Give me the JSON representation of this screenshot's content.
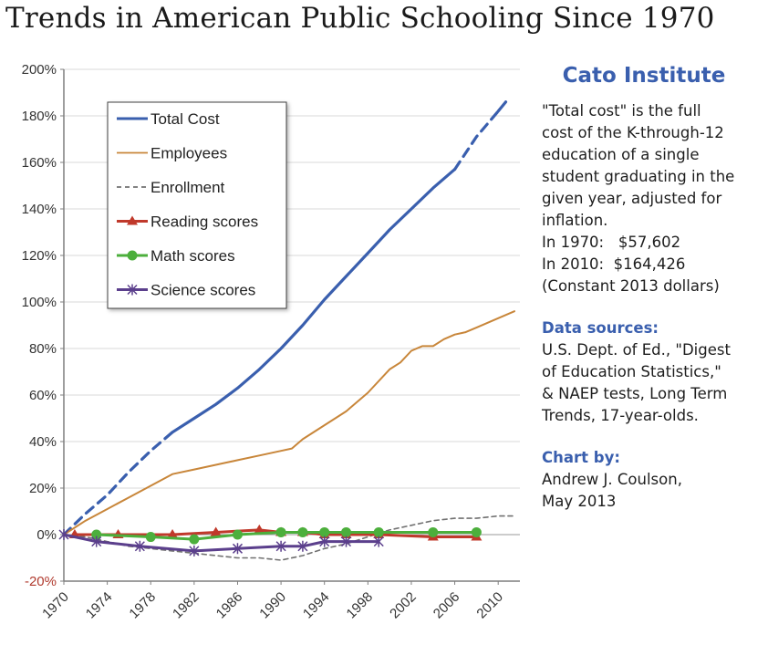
{
  "title": "Trends in American Public Schooling Since 1970",
  "sidebar": {
    "org": "Cato Institute",
    "desc_lines": [
      "\"Total cost\" is the full",
      "cost of the K-through-12",
      "education of a single",
      "student graduating in the",
      "given year, adjusted for",
      "inflation."
    ],
    "cost_1970": "In 1970:   $57,602",
    "cost_2010": "In 2010:  $164,426",
    "constant": "(Constant 2013 dollars)",
    "sources_heading": "Data sources:",
    "sources_lines": [
      "U.S. Dept. of Ed., \"Digest",
      "of Education Statistics,\"",
      "& NAEP tests, Long Term",
      "Trends, 17-year-olds."
    ],
    "chartby_heading": "Chart by:",
    "author": "Andrew J. Coulson,",
    "date": "May 2013"
  },
  "chart_data": {
    "type": "line",
    "title": "Trends in American Public Schooling Since 1970",
    "xlabel": "",
    "ylabel": "",
    "xlim": [
      1970,
      2012
    ],
    "ylim": [
      -20,
      200
    ],
    "y_ticks": [
      -20,
      0,
      20,
      40,
      60,
      80,
      100,
      120,
      140,
      160,
      180,
      200
    ],
    "y_tick_labels": [
      "-20%",
      "0%",
      "20%",
      "40%",
      "60%",
      "80%",
      "100%",
      "120%",
      "140%",
      "160%",
      "180%",
      "200%"
    ],
    "x_ticks": [
      1970,
      1974,
      1978,
      1982,
      1986,
      1990,
      1994,
      1998,
      2002,
      2006,
      2010
    ],
    "x_tick_labels": [
      "1970",
      "1974",
      "1978",
      "1982",
      "1986",
      "1990",
      "1994",
      "1998",
      "2002",
      "2006",
      "2010"
    ],
    "legend_position": "top-left",
    "series": [
      {
        "name": "Total Cost",
        "color": "#3a5fae",
        "segments": [
          {
            "style": "dashed",
            "x": [
              1970,
              1972,
              1974,
              1976,
              1978,
              1980
            ],
            "y": [
              0,
              9,
              17,
              27,
              36,
              44
            ]
          },
          {
            "style": "solid",
            "x": [
              1980,
              1982,
              1984,
              1986,
              1988,
              1990,
              1992,
              1994,
              1996,
              1998,
              2000,
              2002,
              2004,
              2006
            ],
            "y": [
              44,
              50,
              56,
              63,
              71,
              80,
              90,
              101,
              111,
              121,
              131,
              140,
              149,
              157
            ]
          },
          {
            "style": "dashed",
            "x": [
              2006,
              2008,
              2010
            ],
            "y": [
              157,
              171,
              182
            ]
          },
          {
            "style": "solid",
            "x": [
              2010,
              2010.7
            ],
            "y": [
              182,
              186
            ]
          }
        ]
      },
      {
        "name": "Employees",
        "color": "#c8863a",
        "segments": [
          {
            "style": "solid",
            "x": [
              1970,
              1972,
              1974,
              1976,
              1978,
              1980,
              1982,
              1984,
              1986,
              1988,
              1990,
              1991,
              1992,
              1994,
              1996,
              1998,
              2000,
              2001,
              2002,
              2003,
              2004,
              2005,
              2006,
              2007,
              2008,
              2009,
              2010,
              2011.5
            ],
            "y": [
              0,
              6,
              11,
              16,
              21,
              26,
              28,
              30,
              32,
              34,
              36,
              37,
              41,
              47,
              53,
              61,
              71,
              74,
              79,
              81,
              81,
              84,
              86,
              87,
              89,
              91,
              93,
              96
            ]
          }
        ]
      },
      {
        "name": "Enrollment",
        "color": "#707070",
        "segments": [
          {
            "style": "dashed",
            "x": [
              1970,
              1972,
              1974,
              1976,
              1978,
              1980,
              1982,
              1984,
              1986,
              1988,
              1990,
              1992,
              1994,
              1996,
              1998,
              2000,
              2002,
              2004,
              2006,
              2008,
              2010,
              2011.5
            ],
            "y": [
              0,
              -1,
              -3,
              -5,
              -6,
              -7,
              -8,
              -9,
              -10,
              -10,
              -11,
              -9,
              -6,
              -4,
              -1,
              2,
              4,
              6,
              7,
              7,
              8,
              8
            ]
          }
        ]
      },
      {
        "name": "Reading scores",
        "color": "#c0392b",
        "marker": "triangle",
        "segments": [
          {
            "style": "solid",
            "x": [
              1971,
              1975,
              1980,
              1984,
              1988,
              1990,
              1992,
              1994,
              1996,
              1999,
              2004,
              2008
            ],
            "y": [
              0,
              0,
              0,
              1,
              2,
              1,
              1,
              0,
              0,
              0,
              -1,
              -1
            ]
          }
        ]
      },
      {
        "name": "Math scores",
        "color": "#4caf3c",
        "marker": "circle",
        "segments": [
          {
            "style": "solid",
            "x": [
              1973,
              1978,
              1982,
              1986,
              1990,
              1992,
              1994,
              1996,
              1999,
              2004,
              2008
            ],
            "y": [
              0,
              -1,
              -2,
              0,
              1,
              1,
              1,
              1,
              1,
              1,
              1
            ]
          }
        ]
      },
      {
        "name": "Science scores",
        "color": "#5b3f8c",
        "marker": "asterisk",
        "segments": [
          {
            "style": "solid",
            "x": [
              1970,
              1973,
              1977,
              1982,
              1986,
              1990,
              1992,
              1994,
              1996,
              1999
            ],
            "y": [
              0,
              -3,
              -5,
              -7,
              -6,
              -5,
              -5,
              -3,
              -3,
              -3
            ]
          }
        ]
      }
    ]
  }
}
